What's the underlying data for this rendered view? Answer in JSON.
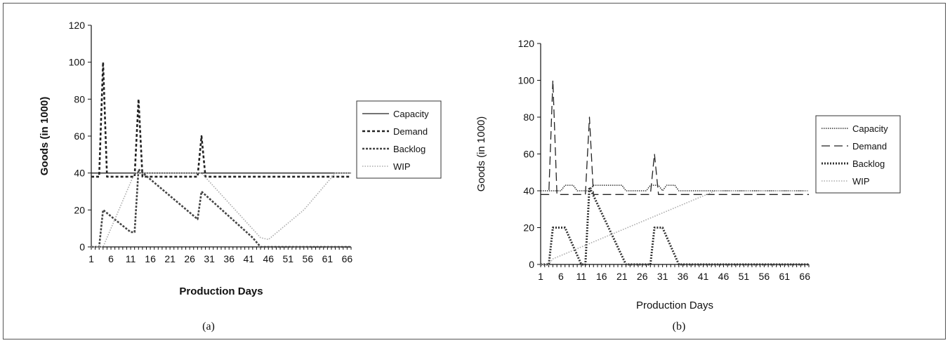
{
  "chart_data": [
    {
      "type": "line",
      "panel_label": "(a)",
      "xlabel": "Production Days",
      "ylabel": "Goods (in 1000)",
      "ylim": [
        0,
        120
      ],
      "yticks": [
        0,
        20,
        40,
        60,
        80,
        100,
        120
      ],
      "xlim": [
        1,
        67
      ],
      "xticks": [
        1,
        6,
        11,
        16,
        21,
        26,
        31,
        36,
        41,
        46,
        51,
        56,
        61,
        66
      ],
      "legend": {
        "placement": "right",
        "entries": [
          "Capacity",
          "Demand",
          "Backlog",
          "WIP"
        ]
      },
      "series": [
        {
          "name": "Capacity",
          "points": [
            [
              1,
              40
            ],
            [
              67,
              40
            ]
          ]
        },
        {
          "name": "Demand",
          "points": [
            [
              1,
              38
            ],
            [
              3,
              38
            ],
            [
              4,
              100
            ],
            [
              5,
              38
            ],
            [
              12,
              38
            ],
            [
              13,
              80
            ],
            [
              14,
              38
            ],
            [
              28,
              38
            ],
            [
              29,
              60
            ],
            [
              30,
              38
            ],
            [
              67,
              38
            ]
          ]
        },
        {
          "name": "Backlog",
          "points": [
            [
              1,
              0
            ],
            [
              3,
              0
            ],
            [
              4,
              20
            ],
            [
              11,
              8
            ],
            [
              12,
              8
            ],
            [
              13,
              42
            ],
            [
              28,
              15
            ],
            [
              29,
              30
            ],
            [
              42,
              5
            ],
            [
              44,
              0
            ],
            [
              67,
              0
            ]
          ]
        },
        {
          "name": "WIP",
          "points": [
            [
              1,
              0
            ],
            [
              4,
              0
            ],
            [
              12,
              40
            ],
            [
              12,
              40
            ],
            [
              13,
              40
            ],
            [
              28,
              40
            ],
            [
              29,
              40
            ],
            [
              44,
              5
            ],
            [
              46,
              4
            ],
            [
              55,
              20
            ],
            [
              63,
              40
            ],
            [
              67,
              40
            ]
          ]
        }
      ]
    },
    {
      "type": "line",
      "panel_label": "(b)",
      "xlabel": "Production Days",
      "ylabel": "Goods (in 1000)",
      "ylim": [
        0,
        120
      ],
      "yticks": [
        0,
        20,
        40,
        60,
        80,
        100,
        120
      ],
      "xlim": [
        1,
        67
      ],
      "xticks": [
        1,
        6,
        11,
        16,
        21,
        26,
        31,
        36,
        41,
        46,
        51,
        56,
        61,
        66
      ],
      "legend": {
        "placement": "right",
        "entries": [
          "Capacity",
          "Demand",
          "Backlog",
          "WIP"
        ]
      },
      "series": [
        {
          "name": "Capacity",
          "points": [
            [
              1,
              40
            ],
            [
              6,
              40
            ],
            [
              7,
              43
            ],
            [
              9,
              43
            ],
            [
              10,
              40
            ],
            [
              13,
              40
            ],
            [
              14,
              43
            ],
            [
              21,
              43
            ],
            [
              22,
              40
            ],
            [
              27,
              40
            ],
            [
              28,
              43
            ],
            [
              30,
              43
            ],
            [
              31,
              40
            ],
            [
              32,
              43
            ],
            [
              34,
              43
            ],
            [
              35,
              40
            ],
            [
              67,
              40
            ]
          ]
        },
        {
          "name": "Demand",
          "points": [
            [
              1,
              38
            ],
            [
              3,
              38
            ],
            [
              4,
              100
            ],
            [
              5,
              38
            ],
            [
              12,
              38
            ],
            [
              13,
              80
            ],
            [
              14,
              38
            ],
            [
              28,
              38
            ],
            [
              29,
              60
            ],
            [
              30,
              38
            ],
            [
              67,
              38
            ]
          ]
        },
        {
          "name": "Backlog",
          "points": [
            [
              1,
              0
            ],
            [
              3,
              0
            ],
            [
              4,
              20
            ],
            [
              7,
              20
            ],
            [
              11,
              0
            ],
            [
              12,
              0
            ],
            [
              13,
              42
            ],
            [
              22,
              0
            ],
            [
              28,
              0
            ],
            [
              29,
              20
            ],
            [
              31,
              20
            ],
            [
              35,
              0
            ],
            [
              67,
              0
            ]
          ]
        },
        {
          "name": "WIP",
          "points": [
            [
              1,
              0
            ],
            [
              3,
              0
            ],
            [
              4,
              3
            ],
            [
              44,
              40
            ],
            [
              67,
              40
            ]
          ]
        }
      ]
    }
  ]
}
